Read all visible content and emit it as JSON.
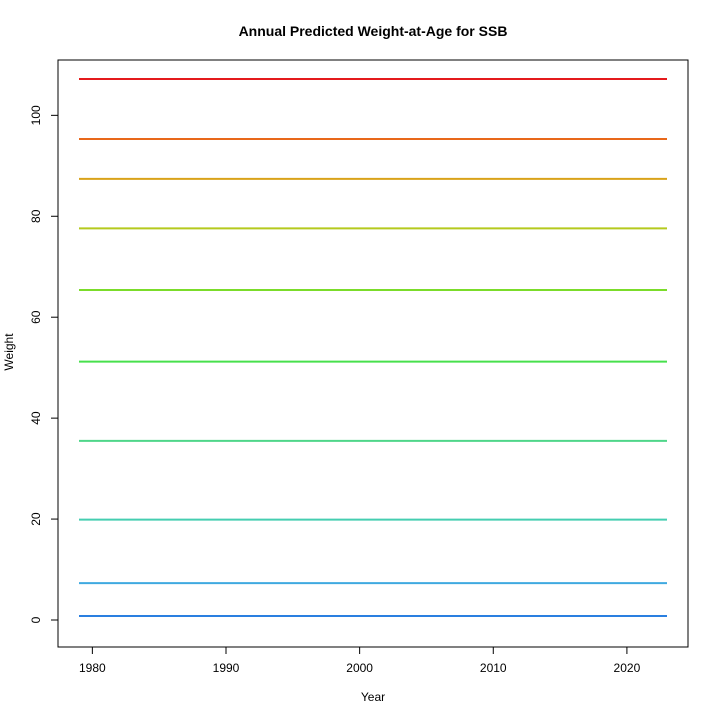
{
  "chart_data": {
    "type": "line",
    "title": "Annual Predicted Weight-at-Age for SSB",
    "xlabel": "Year",
    "ylabel": "Weight",
    "xlim": [
      1979,
      2023
    ],
    "ylim": [
      0,
      107.2
    ],
    "x_ticks": [
      1980,
      1990,
      2000,
      2010,
      2020
    ],
    "y_ticks": [
      0,
      20,
      40,
      60,
      80,
      100
    ],
    "grid": false,
    "legend": "none",
    "x": [
      1979,
      2023
    ],
    "series": [
      {
        "values": [
          107.2,
          107.2
        ],
        "color": "#e41a1c"
      },
      {
        "values": [
          95.3,
          95.3
        ],
        "color": "#e8681a"
      },
      {
        "values": [
          87.4,
          87.4
        ],
        "color": "#d9a21a"
      },
      {
        "values": [
          77.6,
          77.6
        ],
        "color": "#b5c91e"
      },
      {
        "values": [
          65.4,
          65.4
        ],
        "color": "#7bdc2a"
      },
      {
        "values": [
          51.2,
          51.2
        ],
        "color": "#47e04c"
      },
      {
        "values": [
          35.5,
          35.5
        ],
        "color": "#4fd68a"
      },
      {
        "values": [
          19.9,
          19.9
        ],
        "color": "#45ceb0"
      },
      {
        "values": [
          7.3,
          7.3
        ],
        "color": "#3fa9e0"
      },
      {
        "values": [
          0.8,
          0.8
        ],
        "color": "#2a7fe0"
      }
    ]
  }
}
